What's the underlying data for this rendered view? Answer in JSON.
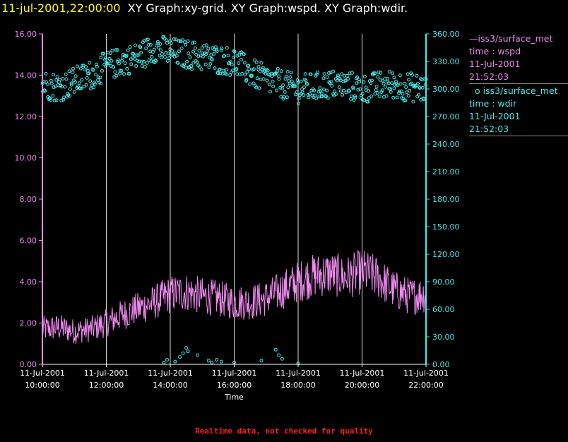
{
  "header": {
    "timestamp": "11-jul-2001,22:00:00",
    "graph_titles": "XY Graph:xy-grid.  XY Graph:wspd.  XY Graph:wdir."
  },
  "legend": {
    "wspd": {
      "symbol": "—",
      "source": "iss3/surface_met",
      "variable": "time : wspd",
      "date": "11-Jul-2001",
      "time": "21:52:03"
    },
    "wdir": {
      "symbol": "o",
      "source": "iss3/surface_met",
      "variable": "time : wdir",
      "date": "11-Jul-2001",
      "time": "21:52:03"
    }
  },
  "footer": "Realtime data, not checked for quality",
  "colors": {
    "wspd": "#ee88ee",
    "wdir": "#44eeee",
    "timestamp": "#ffff00",
    "footer": "#ff2020",
    "grid": "#dddddd"
  },
  "chart_data": {
    "type": "line",
    "xlabel": "Time",
    "x_ticks": [
      [
        "11-Jul-2001",
        "10:00:00"
      ],
      [
        "11-Jul-2001",
        "12:00:00"
      ],
      [
        "11-Jul-2001",
        "14:00:00"
      ],
      [
        "11-Jul-2001",
        "16:00:00"
      ],
      [
        "11-Jul-2001",
        "18:00:00"
      ],
      [
        "11-Jul-2001",
        "20:00:00"
      ],
      [
        "11-Jul-2001",
        "22:00:00"
      ]
    ],
    "x_range_hours": [
      10.0,
      22.0
    ],
    "y_left": {
      "range": [
        0,
        16
      ],
      "ticks": [
        "0.00",
        "2.00",
        "4.00",
        "6.00",
        "8.00",
        "10.00",
        "12.00",
        "14.00",
        "16.00"
      ]
    },
    "y_right": {
      "range": [
        0,
        360
      ],
      "ticks": [
        "0.00",
        "30.00",
        "60.00",
        "90.00",
        "120.00",
        "150.00",
        "180.00",
        "210.00",
        "240.00",
        "270.00",
        "300.00",
        "330.00",
        "360.00"
      ]
    },
    "vertical_grid": true,
    "series": [
      {
        "name": "iss3/surface_met time : wspd",
        "axis": "left",
        "style": "line",
        "x": [
          10.0,
          10.5,
          11.0,
          11.5,
          12.0,
          12.5,
          13.0,
          13.5,
          14.0,
          14.5,
          15.0,
          15.5,
          16.0,
          16.5,
          17.0,
          17.5,
          18.0,
          18.5,
          19.0,
          19.5,
          20.0,
          20.5,
          21.0,
          21.5,
          22.0
        ],
        "y": [
          1.7,
          1.8,
          1.6,
          1.7,
          2.0,
          2.4,
          2.7,
          3.0,
          3.4,
          3.5,
          3.3,
          3.2,
          3.0,
          3.0,
          3.2,
          3.6,
          4.0,
          4.3,
          4.4,
          4.2,
          4.5,
          4.2,
          3.6,
          3.3,
          3.4
        ]
      },
      {
        "name": "iss3/surface_met time : wdir",
        "axis": "right",
        "style": "scatter",
        "x": [
          10.0,
          10.5,
          11.0,
          11.5,
          12.0,
          12.5,
          13.0,
          13.5,
          14.0,
          14.5,
          15.0,
          15.5,
          16.0,
          16.5,
          17.0,
          17.5,
          18.0,
          18.5,
          19.0,
          19.5,
          20.0,
          20.5,
          21.0,
          21.5,
          22.0
        ],
        "y": [
          305,
          302,
          308,
          315,
          325,
          330,
          335,
          345,
          340,
          338,
          335,
          332,
          330,
          318,
          310,
          305,
          300,
          302,
          305,
          304,
          300,
          303,
          305,
          302,
          300
        ]
      }
    ],
    "outliers_wdir": [
      {
        "x": 13.8,
        "y": 2
      },
      {
        "x": 13.9,
        "y": 5
      },
      {
        "x": 14.15,
        "y": 3
      },
      {
        "x": 14.3,
        "y": 8
      },
      {
        "x": 14.4,
        "y": 12
      },
      {
        "x": 14.5,
        "y": 18
      },
      {
        "x": 14.55,
        "y": 14
      },
      {
        "x": 14.85,
        "y": 10
      },
      {
        "x": 15.2,
        "y": 4
      },
      {
        "x": 15.3,
        "y": 2
      },
      {
        "x": 15.45,
        "y": 5
      },
      {
        "x": 15.6,
        "y": 3
      },
      {
        "x": 16.0,
        "y": 2
      },
      {
        "x": 16.85,
        "y": 4
      },
      {
        "x": 17.3,
        "y": 16
      },
      {
        "x": 17.4,
        "y": 10
      },
      {
        "x": 17.5,
        "y": 6
      },
      {
        "x": 18.0,
        "y": 1
      }
    ]
  }
}
